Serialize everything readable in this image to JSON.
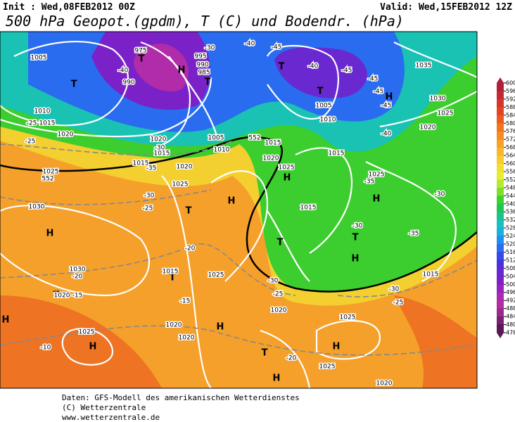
{
  "header": {
    "init": "Init : Wed,08FEB2012 00Z",
    "valid": "Valid: Wed,15FEB2012 12Z",
    "title": "500 hPa Geopot.(gpdm), T (C) und Bodendr. (hPa)"
  },
  "colorbar": {
    "values": [
      600,
      596,
      592,
      588,
      584,
      580,
      576,
      572,
      568,
      564,
      560,
      556,
      552,
      548,
      544,
      540,
      536,
      532,
      528,
      524,
      520,
      516,
      512,
      508,
      504,
      500,
      496,
      492,
      488,
      484,
      480,
      478
    ],
    "colors": [
      "#b0203a",
      "#c42832",
      "#d8342a",
      "#e44424",
      "#ee5a1e",
      "#f2741c",
      "#f58c20",
      "#f7a226",
      "#f8b82a",
      "#f8cc2e",
      "#f5de32",
      "#e6ee30",
      "#b8ea2c",
      "#7ee02a",
      "#3cd42c",
      "#1ec850",
      "#1ac48a",
      "#18c0c0",
      "#1ab0e0",
      "#2090ee",
      "#2a6cf0",
      "#3448ec",
      "#4a30e0",
      "#6428d4",
      "#7c20c8",
      "#9424c0",
      "#aa28b4",
      "#b42ca0",
      "#9a2a8a",
      "#7a2070",
      "#5a1856"
    ]
  },
  "map": {
    "labels": [
      "1005",
      "-40",
      "990",
      "T",
      "T",
      "975",
      "H",
      "995",
      "990",
      "985",
      "T",
      "-30",
      "-40",
      "-45",
      "T",
      "-40",
      "-45",
      "T",
      "1005",
      "1010",
      "-45",
      "-45",
      "H",
      "-45",
      "1035",
      "1030",
      "1025",
      "1020",
      "-40",
      "1010",
      "-25",
      "1015",
      "1020",
      "-25",
      "1025",
      "1030",
      "H",
      "1015",
      "-35",
      "1020",
      "1025",
      "T",
      "H",
      "-25",
      "-30",
      "-20",
      "T",
      "1015",
      "1025",
      "1030",
      "-20",
      "T",
      "1020",
      "-15",
      "1025",
      "H",
      "-10",
      "H",
      "1020",
      "-15",
      "1020",
      "H",
      "T",
      "-20",
      "H",
      "1025",
      "H",
      "1025",
      "1020",
      "1020",
      "-25",
      "-30",
      "T",
      "1015",
      "H",
      "1025",
      "1020",
      "1015",
      "1025",
      "-35",
      "H",
      "-30",
      "-35",
      "-30",
      "1015",
      "-30",
      "-25",
      "H",
      "T",
      "1005",
      "1010",
      "1015",
      "-30",
      "1020",
      "1015",
      "552",
      "552"
    ]
  },
  "footer": {
    "source": "Daten: GFS-Modell des amerikanischen Wetterdienstes",
    "copyright": "(C) Wetterzentrale",
    "url": "www.wetterzentrale.de"
  }
}
